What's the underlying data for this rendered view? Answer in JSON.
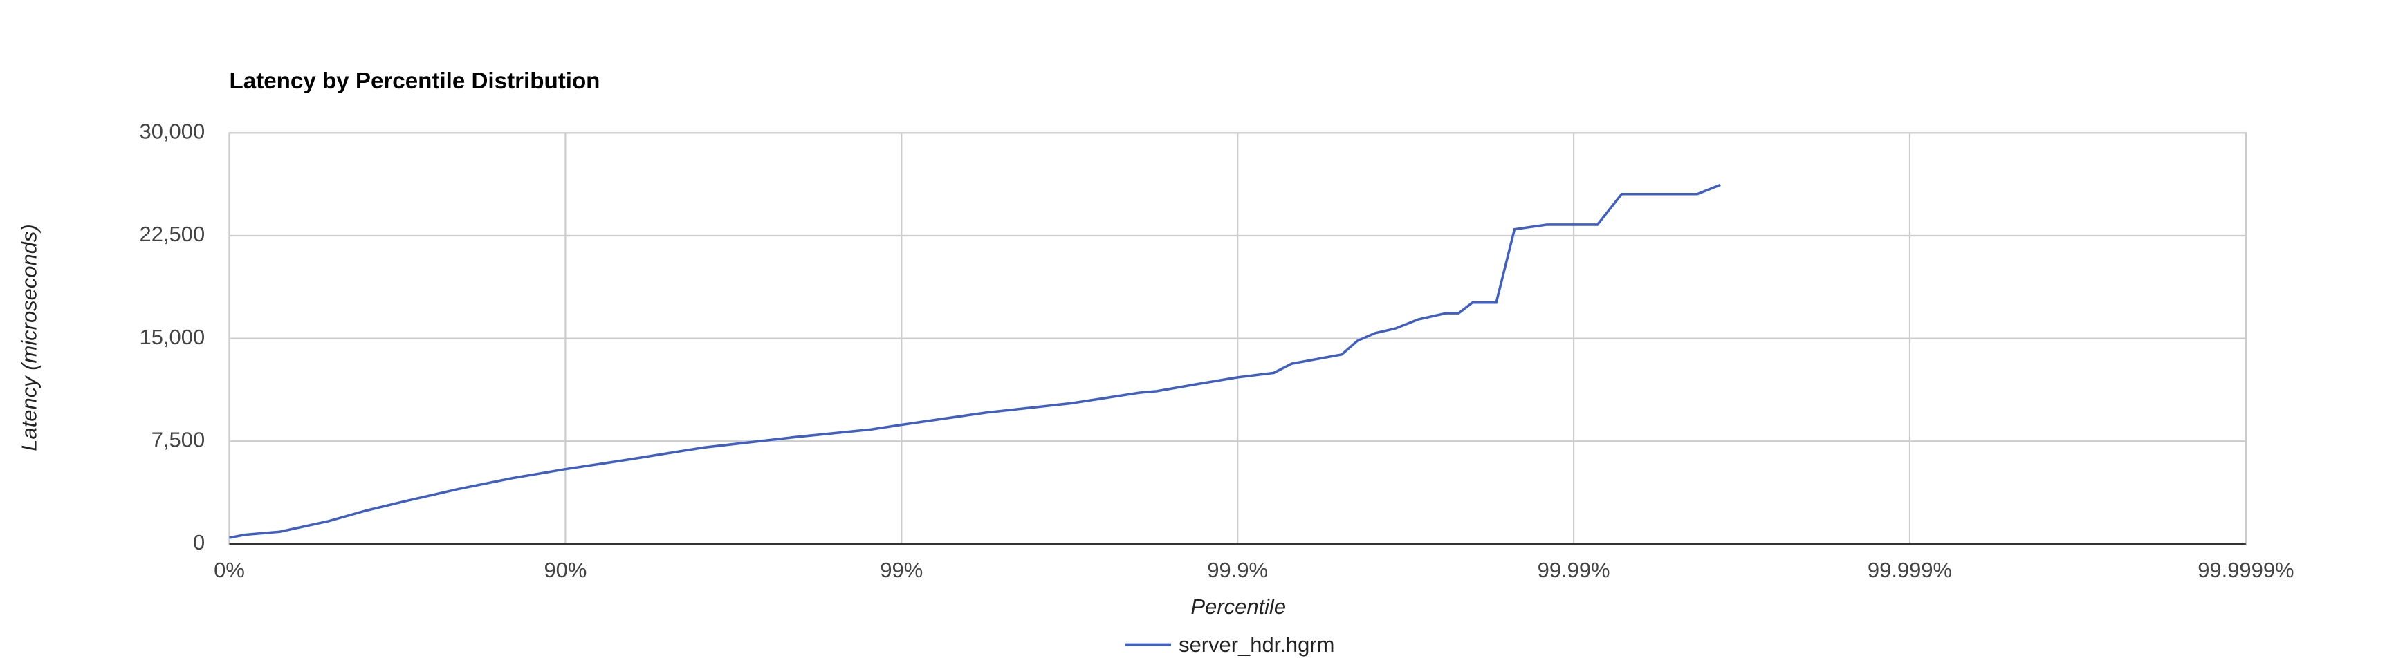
{
  "chart_data": {
    "type": "line",
    "title": "Latency by Percentile Distribution",
    "xlabel": "Percentile",
    "ylabel": "Latency (microseconds)",
    "xscale": "percentile-log",
    "grid": true,
    "legend": "bottom",
    "x": [
      0,
      9.95,
      29.2,
      49.4,
      61,
      70,
      79.2,
      85.6,
      90,
      93.4,
      96.1,
      97.93,
      98.77,
      99,
      99.44,
      99.685,
      99.804,
      99.826,
      99.871,
      99.9,
      99.922,
      99.931,
      99.951,
      99.956,
      99.961,
      99.966,
      99.971,
      99.976,
      99.978,
      99.98,
      99.983,
      99.985,
      99.988,
      99.99,
      99.9915,
      99.9928,
      99.99571,
      99.99634
    ],
    "series": [
      {
        "name": "server_hdr.hgrm",
        "color": "#3f5fc4",
        "values": [
          450,
          670,
          890,
          1670,
          2450,
          3120,
          4010,
          4800,
          5460,
          6130,
          7030,
          7800,
          8360,
          8700,
          9590,
          10260,
          11040,
          11150,
          11710,
          12160,
          12490,
          13160,
          13830,
          14830,
          15390,
          15720,
          16390,
          16840,
          16840,
          17620,
          17620,
          22970,
          23310,
          23310,
          23310,
          25540,
          25540,
          26210
        ]
      }
    ],
    "xlim": [
      0,
      99.9999
    ],
    "xticks": [
      {
        "value": 0,
        "label": "0%"
      },
      {
        "value": 90,
        "label": "90%"
      },
      {
        "value": 99,
        "label": "99%"
      },
      {
        "value": 99.9,
        "label": "99.9%"
      },
      {
        "value": 99.99,
        "label": "99.99%"
      },
      {
        "value": 99.999,
        "label": "99.999%"
      },
      {
        "value": 99.9999,
        "label": "99.9999%"
      }
    ],
    "ylim": [
      0,
      30000
    ],
    "yticks": [
      0,
      {
        "value": 7500,
        "label": "7,500"
      },
      {
        "value": 15000,
        "label": "15,000"
      },
      {
        "value": 22500,
        "label": "22,500"
      },
      {
        "value": 30000,
        "label": "30,000"
      }
    ]
  }
}
